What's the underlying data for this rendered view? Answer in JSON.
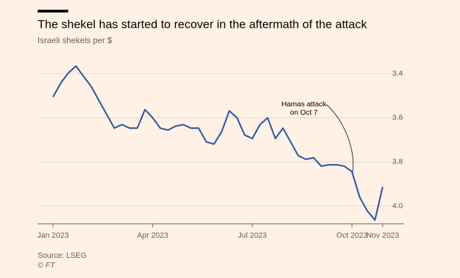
{
  "chart_data": {
    "type": "line",
    "title": "The shekel has started to recover in the aftermath of the attack",
    "subtitle": "Israeli shekels per $",
    "source": "Source: LSEG",
    "credit": "© FT",
    "annotation": [
      "Hamas attack",
      "on Oct 7"
    ],
    "categories": [
      "Jan 2023",
      null,
      null,
      null,
      null,
      null,
      null,
      null,
      null,
      null,
      null,
      null,
      null,
      "Apr 2023",
      null,
      null,
      null,
      null,
      null,
      null,
      null,
      null,
      null,
      null,
      null,
      null,
      "Jul 2023",
      null,
      null,
      null,
      null,
      null,
      null,
      null,
      null,
      null,
      null,
      null,
      null,
      "Oct 2023",
      null,
      null,
      null,
      "Nov 2023"
    ],
    "series": [
      {
        "name": "Israeli shekels per $",
        "color": "#2f5a9e",
        "values": [
          3.506,
          3.444,
          3.397,
          3.366,
          3.413,
          3.459,
          3.522,
          3.584,
          3.647,
          3.631,
          3.647,
          3.647,
          3.563,
          3.6,
          3.647,
          3.656,
          3.638,
          3.631,
          3.647,
          3.647,
          3.709,
          3.719,
          3.663,
          3.569,
          3.6,
          3.678,
          3.694,
          3.631,
          3.6,
          3.694,
          3.647,
          3.709,
          3.772,
          3.788,
          3.781,
          3.819,
          3.813,
          3.813,
          3.819,
          3.844,
          3.959,
          4.022,
          4.063,
          3.913
        ]
      }
    ],
    "ylim": [
      3.35,
      4.08
    ],
    "inverted": true,
    "yticks": [
      3.4,
      3.6,
      3.8,
      {
        "value": 4,
        "label": "4.0"
      }
    ],
    "grid": true
  }
}
